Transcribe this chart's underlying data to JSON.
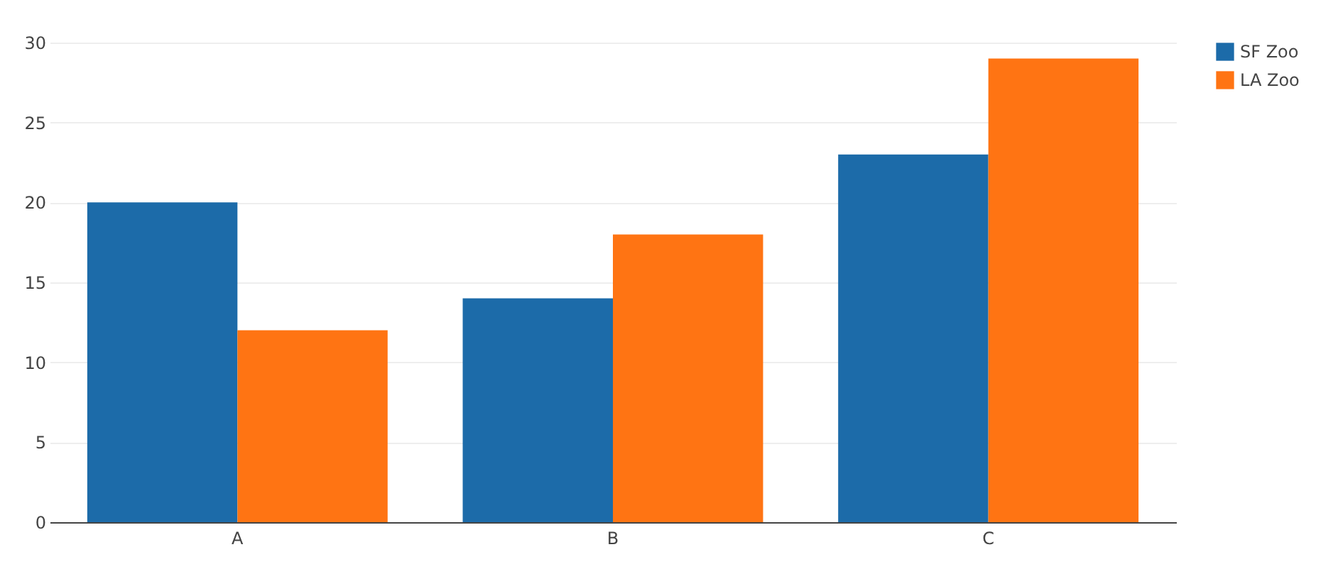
{
  "chart_data": {
    "type": "bar",
    "categories": [
      "A",
      "B",
      "C"
    ],
    "series": [
      {
        "name": "SF Zoo",
        "color": "#1c6ba9",
        "values": [
          20,
          14,
          23
        ]
      },
      {
        "name": "LA Zoo",
        "color": "#ff7413",
        "values": [
          12,
          18,
          29
        ]
      }
    ],
    "ylim": [
      0,
      30
    ],
    "yticks": [
      0,
      5,
      10,
      15,
      20,
      25,
      30
    ],
    "grid": "y",
    "legend": "top right"
  }
}
